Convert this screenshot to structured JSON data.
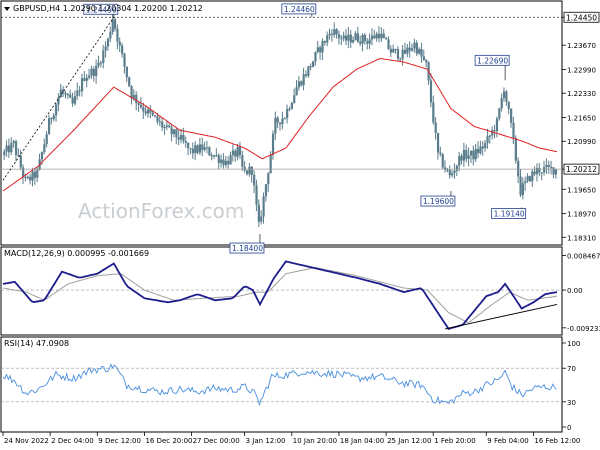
{
  "header": {
    "symbol_line": "GBPUSD,H4  1.20290 1.20304 1.20200 1.20212"
  },
  "watermark": "ActionForex.com",
  "colors": {
    "candle": "#5a7d8c",
    "ema": "#e02020",
    "macd": "#1c1c8c",
    "signal": "#a0a0a0",
    "rsi": "#4a8fe0",
    "trend": "#000000"
  },
  "price_axis": {
    "ticks": [
      {
        "value": 1.2445,
        "label": "1.24450",
        "boxed": true
      },
      {
        "value": 1.2367,
        "label": "1.23670"
      },
      {
        "value": 1.2299,
        "label": "1.22990"
      },
      {
        "value": 1.2233,
        "label": "1.22330"
      },
      {
        "value": 1.2165,
        "label": "1.21650"
      },
      {
        "value": 1.2099,
        "label": "1.20990"
      },
      {
        "value": 1.20212,
        "label": "1.20212",
        "boxed": true
      },
      {
        "value": 1.1965,
        "label": "1.19650"
      },
      {
        "value": 1.1897,
        "label": "1.18970"
      },
      {
        "value": 1.1831,
        "label": "1.18310"
      }
    ],
    "ylim": [
      1.1815,
      1.2482
    ]
  },
  "annotations": [
    {
      "label": "1.24450",
      "bar": 94
    },
    {
      "label": "1.24460",
      "bar": 262
    },
    {
      "label": "1.18400",
      "bar": 218
    },
    {
      "label": "1.22690",
      "bar": 426
    },
    {
      "label": "1.19600",
      "bar": 380
    },
    {
      "label": "1.19140",
      "bar": 440
    }
  ],
  "macd": {
    "title": "MACD(12,26,9) 0.000995 -0.001669",
    "ticks": [
      {
        "value": 0.008467,
        "label": "0.008467"
      },
      {
        "value": 0.0,
        "label": "0.00"
      },
      {
        "value": -0.009233,
        "label": "-0.009233"
      }
    ],
    "ylim": [
      -0.0105,
      0.0098
    ]
  },
  "rsi": {
    "title": "RSI(14) 47.0908",
    "ticks": [
      {
        "value": 100,
        "label": "100"
      },
      {
        "value": 70,
        "label": "70"
      },
      {
        "value": 30,
        "label": "30"
      },
      {
        "value": 0,
        "label": "0"
      }
    ],
    "ylim": [
      0,
      100
    ]
  },
  "x_axis": {
    "labels": [
      {
        "label": "24 Nov 2022",
        "bar": 0
      },
      {
        "label": "2 Dec 04:00",
        "bar": 40
      },
      {
        "label": "9 Dec 12:00",
        "bar": 80
      },
      {
        "label": "16 Dec 20:00",
        "bar": 120
      },
      {
        "label": "27 Dec 00:00",
        "bar": 160
      },
      {
        "label": "3 Jan 12:00",
        "bar": 205
      },
      {
        "label": "10 Jan 20:00",
        "bar": 245
      },
      {
        "label": "18 Jan 04:00",
        "bar": 285
      },
      {
        "label": "25 Jan 12:00",
        "bar": 325
      },
      {
        "label": "1 Feb 20:00",
        "bar": 365
      },
      {
        "label": "9 Feb 04:00",
        "bar": 410
      },
      {
        "label": "16 Feb 12:00",
        "bar": 450
      }
    ]
  },
  "chart_data": {
    "type": "candlestick",
    "title": "GBPUSD,H4",
    "bars": 470,
    "price_path": [
      [
        0,
        1.206
      ],
      [
        10,
        1.209
      ],
      [
        20,
        1.1985
      ],
      [
        30,
        1.201
      ],
      [
        40,
        1.215
      ],
      [
        50,
        1.224
      ],
      [
        60,
        1.22
      ],
      [
        70,
        1.228
      ],
      [
        80,
        1.23
      ],
      [
        90,
        1.238
      ],
      [
        94,
        1.2445
      ],
      [
        100,
        1.236
      ],
      [
        110,
        1.223
      ],
      [
        120,
        1.219
      ],
      [
        130,
        1.216
      ],
      [
        140,
        1.213
      ],
      [
        150,
        1.211
      ],
      [
        160,
        1.207
      ],
      [
        170,
        1.208
      ],
      [
        180,
        1.206
      ],
      [
        190,
        1.204
      ],
      [
        200,
        1.207
      ],
      [
        205,
        1.201
      ],
      [
        212,
        1.202
      ],
      [
        218,
        1.186
      ],
      [
        225,
        1.2
      ],
      [
        232,
        1.215
      ],
      [
        240,
        1.217
      ],
      [
        250,
        1.225
      ],
      [
        260,
        1.23
      ],
      [
        270,
        1.236
      ],
      [
        280,
        1.241
      ],
      [
        290,
        1.238
      ],
      [
        300,
        1.239
      ],
      [
        310,
        1.238
      ],
      [
        320,
        1.24
      ],
      [
        330,
        1.235
      ],
      [
        340,
        1.234
      ],
      [
        350,
        1.237
      ],
      [
        360,
        1.231
      ],
      [
        370,
        1.206
      ],
      [
        380,
        1.2
      ],
      [
        390,
        1.206
      ],
      [
        400,
        1.206
      ],
      [
        410,
        1.209
      ],
      [
        420,
        1.215
      ],
      [
        426,
        1.225
      ],
      [
        432,
        1.214
      ],
      [
        440,
        1.196
      ],
      [
        448,
        1.2
      ],
      [
        455,
        1.202
      ],
      [
        470,
        1.2021
      ]
    ],
    "ema_path": [
      [
        0,
        1.196
      ],
      [
        30,
        1.203
      ],
      [
        60,
        1.213
      ],
      [
        94,
        1.225
      ],
      [
        120,
        1.22
      ],
      [
        150,
        1.213
      ],
      [
        180,
        1.211
      ],
      [
        205,
        1.208
      ],
      [
        220,
        1.205
      ],
      [
        240,
        1.208
      ],
      [
        260,
        1.217
      ],
      [
        280,
        1.225
      ],
      [
        300,
        1.23
      ],
      [
        320,
        1.233
      ],
      [
        340,
        1.232
      ],
      [
        360,
        1.23
      ],
      [
        380,
        1.219
      ],
      [
        400,
        1.214
      ],
      [
        420,
        1.212
      ],
      [
        440,
        1.21
      ],
      [
        455,
        1.208
      ],
      [
        470,
        1.207
      ]
    ],
    "macd_path": [
      [
        0,
        0.0015
      ],
      [
        10,
        0.002
      ],
      [
        25,
        -0.003
      ],
      [
        35,
        -0.0025
      ],
      [
        50,
        0.0045
      ],
      [
        65,
        0.003
      ],
      [
        80,
        0.004
      ],
      [
        94,
        0.0065
      ],
      [
        105,
        0.001
      ],
      [
        120,
        -0.002
      ],
      [
        140,
        -0.003
      ],
      [
        150,
        -0.0025
      ],
      [
        165,
        -0.001
      ],
      [
        180,
        -0.0025
      ],
      [
        195,
        -0.002
      ],
      [
        205,
        0.001
      ],
      [
        212,
        0.0
      ],
      [
        218,
        -0.0035
      ],
      [
        230,
        0.003
      ],
      [
        240,
        0.007
      ],
      [
        255,
        0.006
      ],
      [
        270,
        0.005
      ],
      [
        285,
        0.004
      ],
      [
        300,
        0.003
      ],
      [
        320,
        0.0015
      ],
      [
        340,
        -0.0005
      ],
      [
        355,
        0.0005
      ],
      [
        370,
        -0.006
      ],
      [
        378,
        -0.0095
      ],
      [
        390,
        -0.0085
      ],
      [
        400,
        -0.005
      ],
      [
        410,
        -0.0015
      ],
      [
        420,
        -0.0005
      ],
      [
        426,
        0.0015
      ],
      [
        432,
        -0.001
      ],
      [
        440,
        -0.0045
      ],
      [
        450,
        -0.003
      ],
      [
        460,
        -0.001
      ],
      [
        470,
        -0.0005
      ]
    ],
    "signal_path": [
      [
        0,
        0.0005
      ],
      [
        20,
        -0.0005
      ],
      [
        35,
        -0.0025
      ],
      [
        55,
        0.0015
      ],
      [
        80,
        0.0035
      ],
      [
        100,
        0.004
      ],
      [
        120,
        0.0
      ],
      [
        145,
        -0.0025
      ],
      [
        170,
        -0.002
      ],
      [
        200,
        -0.0015
      ],
      [
        215,
        -0.0005
      ],
      [
        225,
        -0.0005
      ],
      [
        240,
        0.004
      ],
      [
        265,
        0.0055
      ],
      [
        300,
        0.0035
      ],
      [
        340,
        0.0005
      ],
      [
        360,
        0.0
      ],
      [
        378,
        -0.0055
      ],
      [
        395,
        -0.008
      ],
      [
        415,
        -0.0035
      ],
      [
        430,
        -0.0005
      ],
      [
        445,
        -0.0025
      ],
      [
        470,
        -0.0015
      ]
    ],
    "trend_line": [
      [
        375,
        -0.0095
      ],
      [
        470,
        -0.0035
      ]
    ],
    "rsi_path": [
      [
        0,
        62
      ],
      [
        10,
        55
      ],
      [
        20,
        40
      ],
      [
        30,
        45
      ],
      [
        45,
        62
      ],
      [
        60,
        58
      ],
      [
        75,
        68
      ],
      [
        90,
        70
      ],
      [
        94,
        74
      ],
      [
        105,
        50
      ],
      [
        120,
        45
      ],
      [
        135,
        42
      ],
      [
        150,
        45
      ],
      [
        165,
        42
      ],
      [
        180,
        46
      ],
      [
        195,
        44
      ],
      [
        205,
        48
      ],
      [
        212,
        42
      ],
      [
        218,
        28
      ],
      [
        228,
        60
      ],
      [
        240,
        62
      ],
      [
        255,
        66
      ],
      [
        270,
        64
      ],
      [
        285,
        63
      ],
      [
        300,
        58
      ],
      [
        320,
        60
      ],
      [
        340,
        52
      ],
      [
        355,
        50
      ],
      [
        365,
        33
      ],
      [
        378,
        28
      ],
      [
        390,
        40
      ],
      [
        400,
        42
      ],
      [
        410,
        50
      ],
      [
        420,
        56
      ],
      [
        426,
        65
      ],
      [
        432,
        48
      ],
      [
        440,
        38
      ],
      [
        450,
        46
      ],
      [
        460,
        48
      ],
      [
        470,
        47
      ]
    ],
    "ylim_price": [
      1.1815,
      1.2482
    ]
  }
}
